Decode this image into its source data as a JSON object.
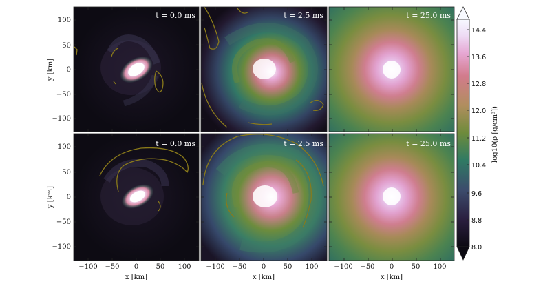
{
  "figure": {
    "panels": [
      {
        "row": 0,
        "col": 0,
        "time_label": "t = 0.0 ms",
        "density": "early",
        "contours": "sparse"
      },
      {
        "row": 0,
        "col": 1,
        "time_label": "t = 2.5 ms",
        "density": "spiral",
        "contours": "outer"
      },
      {
        "row": 0,
        "col": 2,
        "time_label": "t = 25.0 ms",
        "density": "relaxed",
        "contours": "none"
      },
      {
        "row": 1,
        "col": 0,
        "time_label": "t = 0.0 ms",
        "density": "early",
        "contours": "arc"
      },
      {
        "row": 1,
        "col": 1,
        "time_label": "t = 2.5 ms",
        "density": "spiral",
        "contours": "ring"
      },
      {
        "row": 1,
        "col": 2,
        "time_label": "t = 25.0 ms",
        "density": "relaxed",
        "contours": "none"
      }
    ],
    "x_ticks": [
      "−100",
      "−50",
      "0",
      "50",
      "100"
    ],
    "y_ticks": [
      "100",
      "50",
      "0",
      "−50",
      "−100"
    ],
    "x_label": "x [km]",
    "y_label": "y [km]",
    "colorbar": {
      "label": "log10(ρ [g/cm³])",
      "ticks": [
        "14.4",
        "13.6",
        "12.8",
        "12.0",
        "11.2",
        "10.4",
        "9.6",
        "8.8",
        "8.0"
      ],
      "colors": [
        "#0c0a12",
        "#2c2040",
        "#3b4c6a",
        "#2e7a62",
        "#6a8a3a",
        "#b08d5e",
        "#d07a8a",
        "#e6a5d0",
        "#ecd9f3",
        "#f7f7ff"
      ]
    },
    "contour_color": "#8a7a1a"
  }
}
